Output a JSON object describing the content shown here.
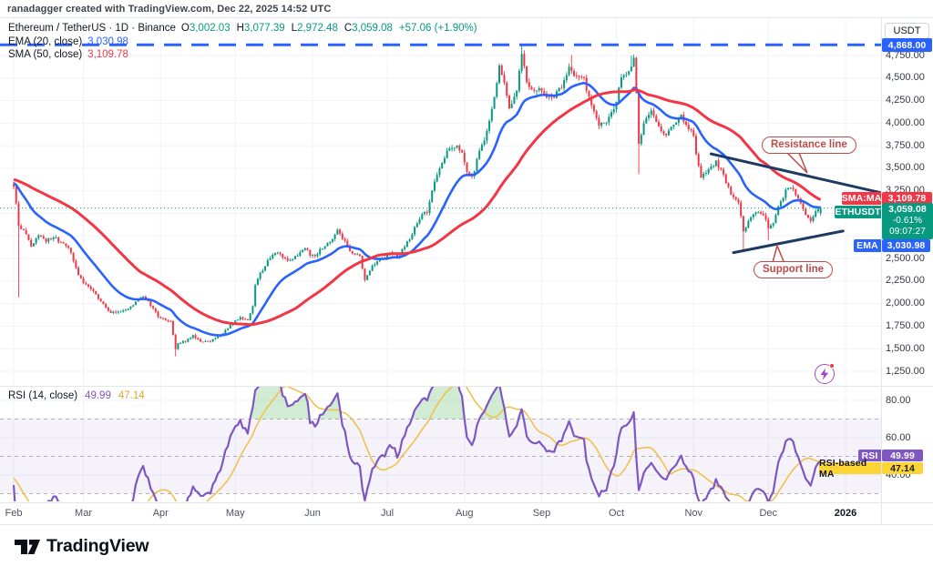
{
  "header": {
    "attribution": "ranadagger created with TradingView.com, Dec 22, 2025 14:52 UTC"
  },
  "legend": {
    "symbol": "Ethereum / TetherUS · 1D · Binance",
    "ohlc": {
      "o_label": "O",
      "o": "3,002.03",
      "h_label": "H",
      "h": "3,077.39",
      "l_label": "L",
      "l": "2,972.48",
      "c_label": "C",
      "c": "3,059.08",
      "change": "+57.06 (+1.90%)"
    },
    "ema": {
      "label": "EMA (20, close)",
      "value": "3,030.98"
    },
    "sma": {
      "label": "SMA (50, close)",
      "value": "3,109.78"
    }
  },
  "rsi_legend": {
    "label": "RSI (14, close)",
    "value": "49.99",
    "ma_value": "47.14"
  },
  "axis": {
    "currency_button": "USDT",
    "badges": {
      "ath": {
        "value": "4,868.00"
      },
      "sma": {
        "label": "SMA:MA",
        "value": "3,109.78"
      },
      "symbol": {
        "label": "ETHUSDT",
        "price": "3,059.08",
        "change": "-0.61%",
        "countdown": "09:07:27"
      },
      "ema": {
        "label": "EMA",
        "value": "3,030.98"
      },
      "rsi": {
        "label": "RSI",
        "value": "49.99"
      },
      "rsi_ma": {
        "label": "RSI-based MA",
        "value": "47.14"
      }
    }
  },
  "annotations": {
    "resistance": {
      "label": "Resistance line"
    },
    "support": {
      "label": "Support line"
    }
  },
  "footer": {
    "brand": "TradingView"
  },
  "colors": {
    "up": "#089981",
    "down": "#f23645",
    "ema": "#2962ff",
    "sma": "#f23645",
    "rsi": "#7e57c2",
    "rsi_ma": "#f0c14e",
    "trend": "#1d3a63",
    "callout": "#bc4a4a",
    "grid": "#f0f3fa",
    "ath_line": "#2962ff"
  },
  "chart_data": {
    "type": "candlestick",
    "symbol": "ETHUSDT",
    "exchange": "Binance",
    "timeframe": "1D",
    "title": "Ethereum / TetherUS · 1D · Binance",
    "ohlc_current": {
      "open": 3002.03,
      "high": 3077.39,
      "low": 2972.48,
      "close": 3059.08,
      "change": 57.06,
      "change_pct": 1.9
    },
    "indicators": {
      "ema20": 3030.98,
      "sma50": 3109.78,
      "rsi14": 49.99,
      "rsi_based_ma": 47.14
    },
    "levels": {
      "all_time_high_dashed_line": 4868.0,
      "current_price_dotted_line": 3059.08
    },
    "price_axis": {
      "ticks": [
        4750,
        4500,
        4250,
        4000,
        3750,
        3500,
        3250,
        3000,
        2750,
        2500,
        2250,
        2000,
        1750,
        1500,
        1250
      ],
      "visible_range": [
        1160,
        4950
      ],
      "currency": "USDT"
    },
    "rsi_axis": {
      "ticks": [
        80,
        60,
        40
      ],
      "band_lines": [
        70,
        50,
        30
      ],
      "band_fill_range": [
        30,
        70
      ]
    },
    "time_axis_months": [
      {
        "label": "Feb",
        "day": 0
      },
      {
        "label": "Mar",
        "day": 28
      },
      {
        "label": "Apr",
        "day": 59
      },
      {
        "label": "May",
        "day": 89
      },
      {
        "label": "Jun",
        "day": 120
      },
      {
        "label": "Jul",
        "day": 150
      },
      {
        "label": "Aug",
        "day": 181
      },
      {
        "label": "Sep",
        "day": 212
      },
      {
        "label": "Oct",
        "day": 242
      },
      {
        "label": "Nov",
        "day": 273
      },
      {
        "label": "Dec",
        "day": 303
      },
      {
        "label": "2026",
        "day": 334,
        "bold": true
      }
    ],
    "price_path_anchors": [
      [
        0,
        3280
      ],
      [
        1,
        3130
      ],
      [
        2,
        2880
      ],
      [
        4,
        2800
      ],
      [
        7,
        2650
      ],
      [
        10,
        2745
      ],
      [
        13,
        2700
      ],
      [
        16,
        2745
      ],
      [
        19,
        2665
      ],
      [
        22,
        2630
      ],
      [
        24,
        2480
      ],
      [
        26,
        2330
      ],
      [
        28,
        2220
      ],
      [
        31,
        2160
      ],
      [
        34,
        2060
      ],
      [
        38,
        1915
      ],
      [
        41,
        1895
      ],
      [
        45,
        1935
      ],
      [
        49,
        2015
      ],
      [
        52,
        2075
      ],
      [
        55,
        1985
      ],
      [
        58,
        1865
      ],
      [
        60,
        1830
      ],
      [
        63,
        1795
      ],
      [
        65,
        1500
      ],
      [
        66,
        1560
      ],
      [
        69,
        1585
      ],
      [
        72,
        1640
      ],
      [
        75,
        1585
      ],
      [
        79,
        1590
      ],
      [
        82,
        1625
      ],
      [
        85,
        1700
      ],
      [
        88,
        1795
      ],
      [
        91,
        1845
      ],
      [
        94,
        1815
      ],
      [
        96,
        1960
      ],
      [
        97,
        2210
      ],
      [
        99,
        2330
      ],
      [
        102,
        2475
      ],
      [
        105,
        2570
      ],
      [
        108,
        2525
      ],
      [
        111,
        2470
      ],
      [
        114,
        2545
      ],
      [
        117,
        2625
      ],
      [
        119,
        2535
      ],
      [
        121,
        2525
      ],
      [
        124,
        2625
      ],
      [
        127,
        2685
      ],
      [
        130,
        2815
      ],
      [
        133,
        2685
      ],
      [
        136,
        2555
      ],
      [
        139,
        2535
      ],
      [
        141,
        2260
      ],
      [
        144,
        2425
      ],
      [
        147,
        2505
      ],
      [
        149,
        2485
      ],
      [
        151,
        2575
      ],
      [
        154,
        2515
      ],
      [
        157,
        2625
      ],
      [
        160,
        2775
      ],
      [
        163,
        2955
      ],
      [
        166,
        3015
      ],
      [
        169,
        3365
      ],
      [
        172,
        3555
      ],
      [
        175,
        3745
      ],
      [
        178,
        3735
      ],
      [
        180,
        3685
      ],
      [
        182,
        3480
      ],
      [
        184,
        3395
      ],
      [
        187,
        3675
      ],
      [
        190,
        3905
      ],
      [
        193,
        4315
      ],
      [
        195,
        4630
      ],
      [
        197,
        4455
      ],
      [
        199,
        4155
      ],
      [
        202,
        4385
      ],
      [
        204,
        4785
      ],
      [
        206,
        4455
      ],
      [
        208,
        4375
      ],
      [
        211,
        4395
      ],
      [
        214,
        4305
      ],
      [
        217,
        4305
      ],
      [
        220,
        4405
      ],
      [
        223,
        4625
      ],
      [
        226,
        4515
      ],
      [
        229,
        4485
      ],
      [
        232,
        4185
      ],
      [
        235,
        3995
      ],
      [
        238,
        4025
      ],
      [
        241,
        4145
      ],
      [
        244,
        4485
      ],
      [
        247,
        4595
      ],
      [
        249,
        4705
      ],
      [
        250,
        4320
      ],
      [
        251,
        3770
      ],
      [
        253,
        3995
      ],
      [
        256,
        4135
      ],
      [
        259,
        3945
      ],
      [
        262,
        3875
      ],
      [
        265,
        4005
      ],
      [
        268,
        4075
      ],
      [
        271,
        3955
      ],
      [
        273,
        3880
      ],
      [
        274,
        3645
      ],
      [
        276,
        3385
      ],
      [
        279,
        3485
      ],
      [
        282,
        3565
      ],
      [
        285,
        3425
      ],
      [
        288,
        3225
      ],
      [
        291,
        3125
      ],
      [
        293,
        2800
      ],
      [
        296,
        2965
      ],
      [
        299,
        3025
      ],
      [
        302,
        2945
      ],
      [
        303,
        2845
      ],
      [
        305,
        2900
      ],
      [
        307,
        3065
      ],
      [
        310,
        3245
      ],
      [
        312,
        3305
      ],
      [
        315,
        3155
      ],
      [
        318,
        2985
      ],
      [
        320,
        2905
      ],
      [
        322,
        3015
      ],
      [
        324,
        3059.08
      ]
    ],
    "special_candles": {
      "2": {
        "low": 2070
      },
      "65": {
        "low": 1415
      },
      "204": {
        "high": 4868
      },
      "224": {
        "high": 4755
      },
      "248": {
        "high": 4750
      },
      "251": {
        "open": 4320,
        "close": 3770,
        "low": 3435
      },
      "293": {
        "low": 2570,
        "close": 2800
      },
      "303": {
        "low": 2705
      },
      "324": {
        "open": 3002.03,
        "high": 3077.39,
        "low": 2972.48,
        "close": 3059.08
      }
    },
    "trend_lines": {
      "resistance": {
        "day1": 280,
        "price1": 3660,
        "day2": 348,
        "price2": 3230
      },
      "support": {
        "day1": 289,
        "price1": 2565,
        "day2": 333,
        "price2": 2805
      }
    }
  }
}
